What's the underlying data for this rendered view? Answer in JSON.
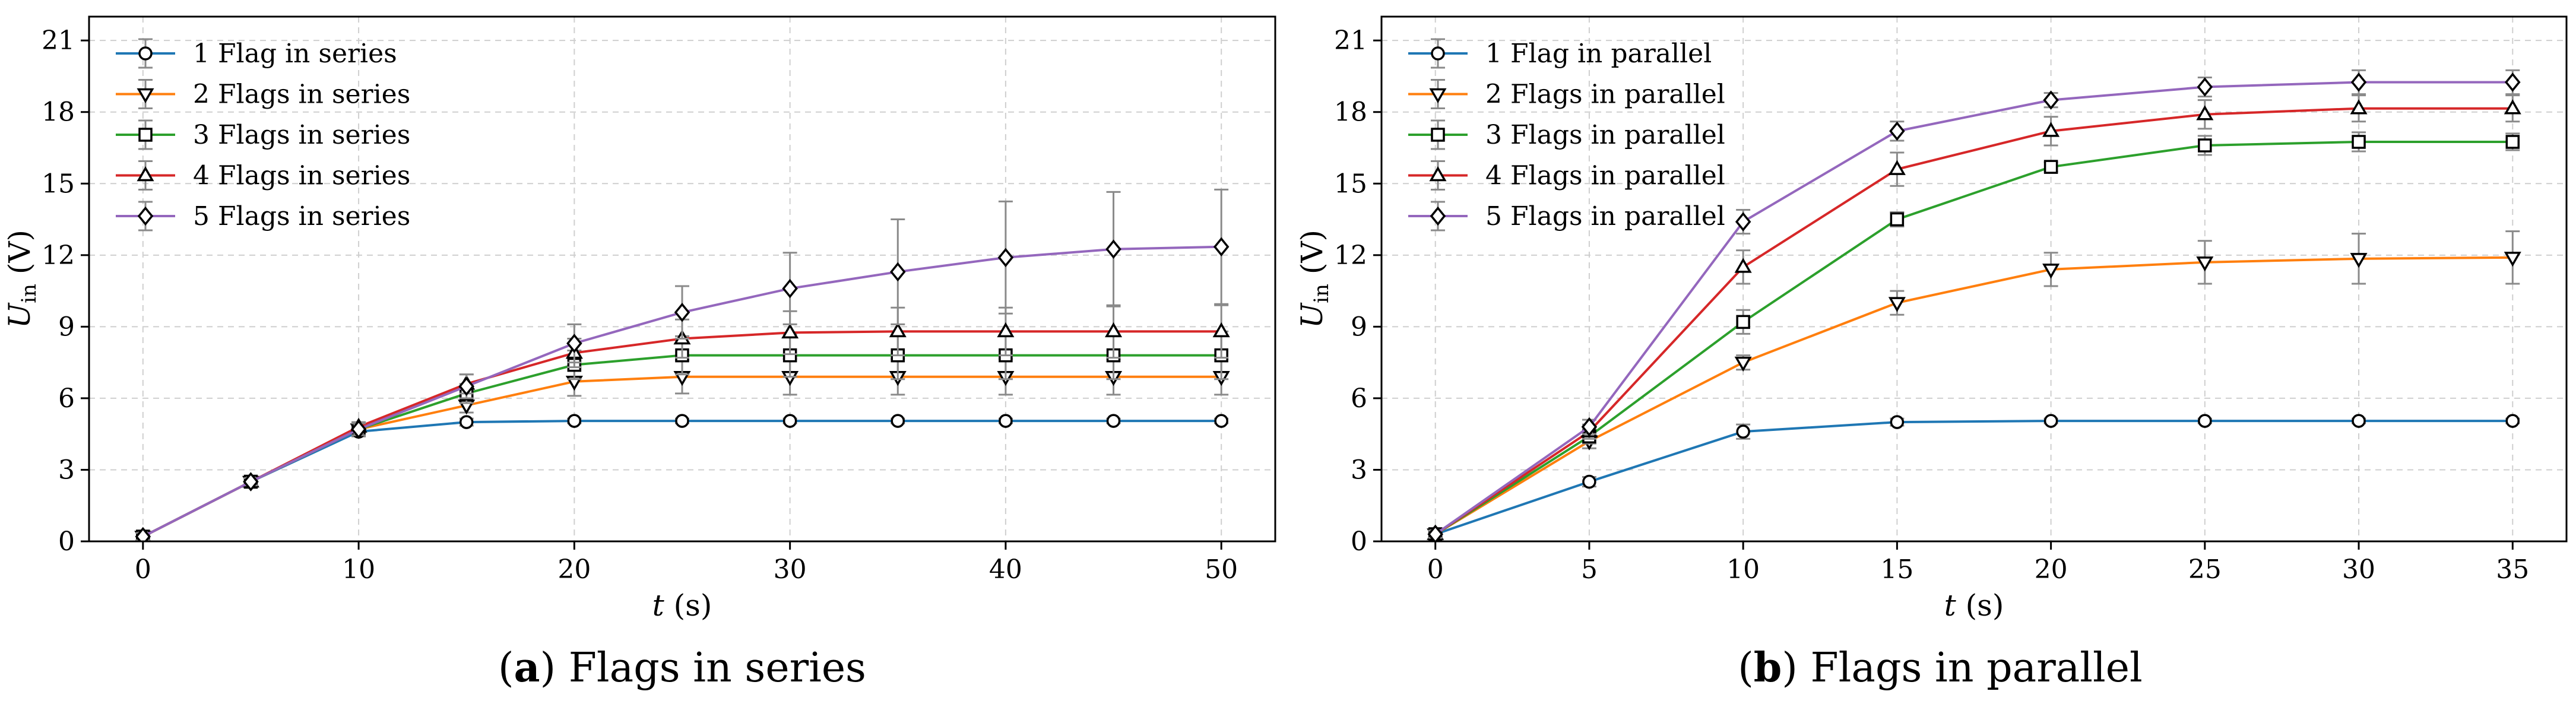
{
  "chart_data": [
    {
      "type": "line",
      "caption_letter": "a",
      "caption_text": "Flags in series",
      "xlabel": "t (s)",
      "ylabel": "U_in (V)",
      "xlim": [
        -2.5,
        52.5
      ],
      "ylim": [
        0,
        22
      ],
      "xticks": [
        0,
        10,
        20,
        30,
        40,
        50
      ],
      "yticks": [
        0,
        3,
        6,
        9,
        12,
        15,
        18,
        21
      ],
      "grid": true,
      "legend_position": "top-left",
      "x": [
        0,
        5,
        10,
        15,
        20,
        25,
        30,
        35,
        40,
        45,
        50
      ],
      "series": [
        {
          "name": "1 Flag in series",
          "color": "#1f77b4",
          "marker": "circle",
          "values": [
            0.2,
            2.5,
            4.6,
            5.0,
            5.05,
            5.05,
            5.05,
            5.05,
            5.05,
            5.05,
            5.05
          ],
          "errors": [
            0.15,
            0.15,
            0.2,
            0.15,
            0.1,
            0.1,
            0.1,
            0.1,
            0.1,
            0.1,
            0.1
          ]
        },
        {
          "name": "2 Flags in series",
          "color": "#ff7f0e",
          "marker": "triangle-down",
          "values": [
            0.2,
            2.5,
            4.7,
            5.7,
            6.7,
            6.9,
            6.9,
            6.9,
            6.9,
            6.9,
            6.9
          ],
          "errors": [
            0.15,
            0.15,
            0.2,
            0.3,
            0.6,
            0.7,
            0.75,
            0.75,
            0.75,
            0.75,
            0.75
          ]
        },
        {
          "name": "3 Flags in series",
          "color": "#2ca02c",
          "marker": "square",
          "values": [
            0.2,
            2.5,
            4.7,
            6.2,
            7.4,
            7.8,
            7.8,
            7.8,
            7.8,
            7.8,
            7.8
          ],
          "errors": [
            0.15,
            0.15,
            0.2,
            0.4,
            0.6,
            0.8,
            0.9,
            1.0,
            1.0,
            1.0,
            1.0
          ]
        },
        {
          "name": "4 Flags in series",
          "color": "#d62728",
          "marker": "triangle-up",
          "values": [
            0.2,
            2.5,
            4.8,
            6.6,
            7.9,
            8.5,
            8.75,
            8.8,
            8.8,
            8.8,
            8.8
          ],
          "errors": [
            0.15,
            0.15,
            0.2,
            0.4,
            0.6,
            0.8,
            0.9,
            1.0,
            1.0,
            1.1,
            1.1
          ]
        },
        {
          "name": "5 Flags in series",
          "color": "#9467bd",
          "marker": "diamond",
          "values": [
            0.2,
            2.5,
            4.7,
            6.5,
            8.3,
            9.6,
            10.6,
            11.3,
            11.9,
            12.25,
            12.35
          ],
          "errors": [
            0.15,
            0.15,
            0.25,
            0.5,
            0.8,
            1.1,
            1.5,
            2.2,
            2.35,
            2.4,
            2.4
          ]
        }
      ]
    },
    {
      "type": "line",
      "caption_letter": "b",
      "caption_text": "Flags in parallel",
      "xlabel": "t (s)",
      "ylabel": "U_in (V)",
      "xlim": [
        -1.75,
        36.75
      ],
      "ylim": [
        0,
        22
      ],
      "xticks": [
        0,
        5,
        10,
        15,
        20,
        25,
        30,
        35
      ],
      "yticks": [
        0,
        3,
        6,
        9,
        12,
        15,
        18,
        21
      ],
      "grid": true,
      "legend_position": "top-left",
      "x": [
        0,
        5,
        10,
        15,
        20,
        25,
        30,
        35
      ],
      "series": [
        {
          "name": "1 Flag in parallel",
          "color": "#1f77b4",
          "marker": "circle",
          "values": [
            0.3,
            2.5,
            4.6,
            5.0,
            5.05,
            5.05,
            5.05,
            5.05
          ],
          "errors": [
            0.15,
            0.2,
            0.3,
            0.15,
            0.1,
            0.1,
            0.1,
            0.1
          ]
        },
        {
          "name": "2 Flags in parallel",
          "color": "#ff7f0e",
          "marker": "triangle-down",
          "values": [
            0.3,
            4.2,
            7.5,
            10.0,
            11.4,
            11.7,
            11.85,
            11.9
          ],
          "errors": [
            0.15,
            0.3,
            0.3,
            0.5,
            0.7,
            0.9,
            1.05,
            1.1
          ]
        },
        {
          "name": "3 Flags in parallel",
          "color": "#2ca02c",
          "marker": "square",
          "values": [
            0.3,
            4.4,
            9.2,
            13.5,
            15.7,
            16.6,
            16.75,
            16.75
          ],
          "errors": [
            0.15,
            0.3,
            0.5,
            0.3,
            0.2,
            0.4,
            0.4,
            0.35
          ]
        },
        {
          "name": "4 Flags in parallel",
          "color": "#d62728",
          "marker": "triangle-up",
          "values": [
            0.3,
            4.6,
            11.5,
            15.6,
            17.2,
            17.9,
            18.15,
            18.15
          ],
          "errors": [
            0.15,
            0.3,
            0.7,
            0.7,
            0.6,
            0.6,
            0.55,
            0.55
          ]
        },
        {
          "name": "5 Flags in parallel",
          "color": "#9467bd",
          "marker": "diamond",
          "values": [
            0.3,
            4.8,
            13.4,
            17.2,
            18.5,
            19.05,
            19.25,
            19.25
          ],
          "errors": [
            0.15,
            0.3,
            0.5,
            0.4,
            0.3,
            0.4,
            0.5,
            0.5
          ]
        }
      ]
    }
  ]
}
